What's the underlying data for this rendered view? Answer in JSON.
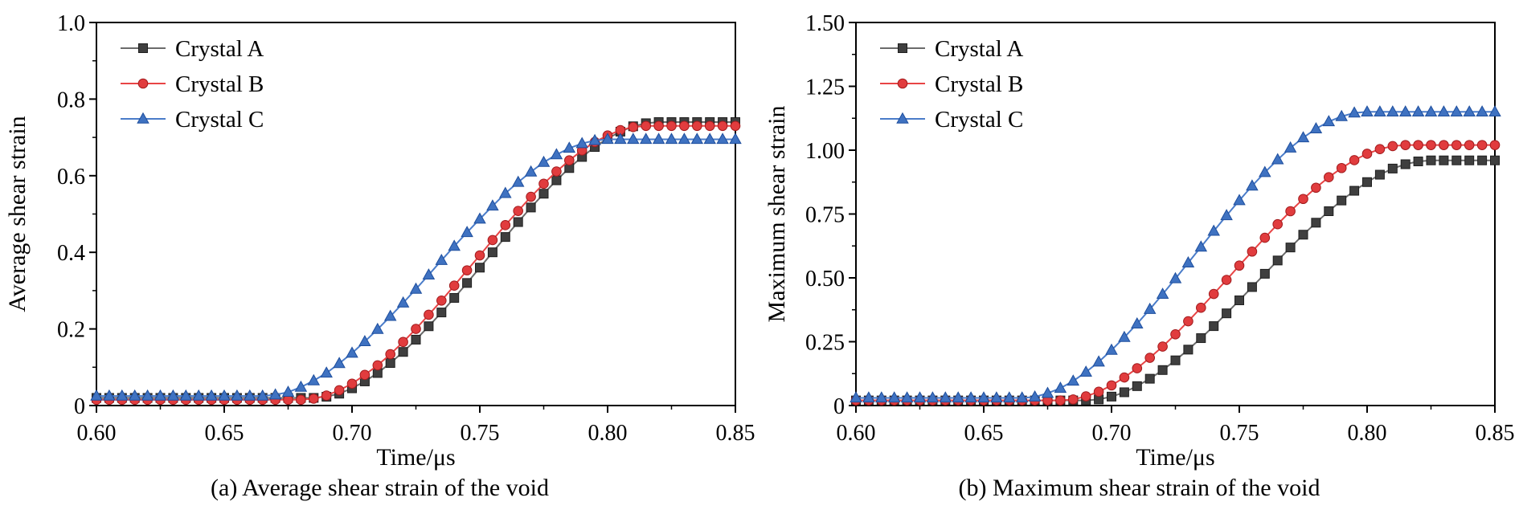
{
  "figure": {
    "background": "#ffffff",
    "panel_captions": [
      "(a) Average shear strain of the void",
      "(b) Maximum shear strain of the void"
    ]
  },
  "chart_data": [
    {
      "type": "line",
      "title": "",
      "xlabel": "Time/μs",
      "ylabel": "Average shear strain",
      "xlim": [
        0.6,
        0.85
      ],
      "ylim": [
        0,
        1.0
      ],
      "xticks": [
        0.6,
        0.65,
        0.7,
        0.75,
        0.8,
        0.85
      ],
      "xtick_labels": [
        "0.60",
        "0.65",
        "0.70",
        "0.75",
        "0.80",
        "0.85"
      ],
      "yticks": [
        0,
        0.2,
        0.4,
        0.6,
        0.8,
        1.0
      ],
      "ytick_labels": [
        "0",
        "0.2",
        "0.4",
        "0.6",
        "0.8",
        "1.0"
      ],
      "grid": false,
      "legend_position": "top-left",
      "caption": "(a) Average shear strain of the void",
      "x": [
        0.6,
        0.605,
        0.61,
        0.615,
        0.62,
        0.625,
        0.63,
        0.635,
        0.64,
        0.645,
        0.65,
        0.655,
        0.66,
        0.665,
        0.67,
        0.675,
        0.68,
        0.685,
        0.69,
        0.695,
        0.7,
        0.705,
        0.71,
        0.715,
        0.72,
        0.725,
        0.73,
        0.735,
        0.74,
        0.745,
        0.75,
        0.755,
        0.76,
        0.765,
        0.77,
        0.775,
        0.78,
        0.785,
        0.79,
        0.795,
        0.8,
        0.805,
        0.81,
        0.815,
        0.82,
        0.825,
        0.83,
        0.835,
        0.84,
        0.845,
        0.85
      ],
      "series": [
        {
          "name": "Crystal A",
          "marker": "square",
          "color": "#6b6b6b",
          "marker_fill": "#3f3f3f",
          "marker_edge": "#1f1f1f",
          "values": [
            0.02,
            0.02,
            0.02,
            0.02,
            0.02,
            0.02,
            0.02,
            0.02,
            0.02,
            0.02,
            0.02,
            0.02,
            0.02,
            0.02,
            0.02,
            0.02,
            0.02,
            0.02,
            0.023,
            0.031,
            0.045,
            0.063,
            0.085,
            0.111,
            0.14,
            0.172,
            0.207,
            0.243,
            0.281,
            0.32,
            0.36,
            0.4,
            0.44,
            0.479,
            0.517,
            0.553,
            0.588,
            0.62,
            0.649,
            0.675,
            0.697,
            0.715,
            0.729,
            0.737,
            0.74,
            0.74,
            0.74,
            0.74,
            0.74,
            0.74,
            0.74
          ]
        },
        {
          "name": "Crystal B",
          "marker": "circle",
          "color": "#e84445",
          "marker_fill": "#e13c3e",
          "marker_edge": "#a21c1e",
          "values": [
            0.015,
            0.015,
            0.015,
            0.015,
            0.015,
            0.015,
            0.015,
            0.015,
            0.015,
            0.015,
            0.015,
            0.015,
            0.015,
            0.015,
            0.015,
            0.015,
            0.015,
            0.018,
            0.026,
            0.04,
            0.057,
            0.08,
            0.105,
            0.134,
            0.166,
            0.2,
            0.237,
            0.274,
            0.313,
            0.353,
            0.392,
            0.432,
            0.471,
            0.508,
            0.545,
            0.579,
            0.611,
            0.64,
            0.666,
            0.688,
            0.705,
            0.719,
            0.727,
            0.73,
            0.73,
            0.73,
            0.73,
            0.73,
            0.73,
            0.73,
            0.73
          ]
        },
        {
          "name": "Crystal C",
          "marker": "triangle",
          "color": "#4a7cc9",
          "marker_fill": "#3f72c1",
          "marker_edge": "#1e4e9d",
          "values": [
            0.025,
            0.025,
            0.025,
            0.025,
            0.025,
            0.025,
            0.025,
            0.025,
            0.025,
            0.025,
            0.025,
            0.025,
            0.025,
            0.025,
            0.028,
            0.035,
            0.048,
            0.065,
            0.085,
            0.11,
            0.137,
            0.167,
            0.199,
            0.233,
            0.268,
            0.304,
            0.341,
            0.379,
            0.416,
            0.452,
            0.487,
            0.521,
            0.554,
            0.583,
            0.61,
            0.635,
            0.655,
            0.672,
            0.684,
            0.692,
            0.695,
            0.695,
            0.695,
            0.695,
            0.695,
            0.695,
            0.695,
            0.695,
            0.695,
            0.695,
            0.695
          ]
        }
      ]
    },
    {
      "type": "line",
      "title": "",
      "xlabel": "Time/μs",
      "ylabel": "Maximum shear strain",
      "xlim": [
        0.6,
        0.85
      ],
      "ylim": [
        0,
        1.5
      ],
      "xticks": [
        0.6,
        0.65,
        0.7,
        0.75,
        0.8,
        0.85
      ],
      "xtick_labels": [
        "0.60",
        "0.65",
        "0.70",
        "0.75",
        "0.80",
        "0.85"
      ],
      "yticks": [
        0,
        0.25,
        0.5,
        0.75,
        1.0,
        1.25,
        1.5
      ],
      "ytick_labels": [
        "0",
        "0.25",
        "0.50",
        "0.75",
        "1.00",
        "1.25",
        "1.50"
      ],
      "grid": false,
      "legend_position": "top-left",
      "caption": "(b) Maximum shear strain of the void",
      "x": [
        0.6,
        0.605,
        0.61,
        0.615,
        0.62,
        0.625,
        0.63,
        0.635,
        0.64,
        0.645,
        0.65,
        0.655,
        0.66,
        0.665,
        0.67,
        0.675,
        0.68,
        0.685,
        0.69,
        0.695,
        0.7,
        0.705,
        0.71,
        0.715,
        0.72,
        0.725,
        0.73,
        0.735,
        0.74,
        0.745,
        0.75,
        0.755,
        0.76,
        0.765,
        0.77,
        0.775,
        0.78,
        0.785,
        0.79,
        0.795,
        0.8,
        0.805,
        0.81,
        0.815,
        0.82,
        0.825,
        0.83,
        0.835,
        0.84,
        0.845,
        0.85
      ],
      "series": [
        {
          "name": "Crystal A",
          "marker": "square",
          "color": "#6b6b6b",
          "marker_fill": "#3f3f3f",
          "marker_edge": "#1f1f1f",
          "values": [
            0.02,
            0.02,
            0.02,
            0.02,
            0.02,
            0.02,
            0.02,
            0.02,
            0.02,
            0.02,
            0.02,
            0.02,
            0.02,
            0.02,
            0.02,
            0.02,
            0.02,
            0.02,
            0.02,
            0.024,
            0.035,
            0.052,
            0.076,
            0.105,
            0.139,
            0.177,
            0.219,
            0.264,
            0.311,
            0.361,
            0.412,
            0.464,
            0.516,
            0.568,
            0.619,
            0.669,
            0.716,
            0.761,
            0.803,
            0.841,
            0.875,
            0.904,
            0.928,
            0.945,
            0.956,
            0.96,
            0.96,
            0.96,
            0.96,
            0.96,
            0.96
          ]
        },
        {
          "name": "Crystal B",
          "marker": "circle",
          "color": "#e84445",
          "marker_fill": "#e13c3e",
          "marker_edge": "#a21c1e",
          "values": [
            0.02,
            0.02,
            0.02,
            0.02,
            0.02,
            0.02,
            0.02,
            0.02,
            0.02,
            0.02,
            0.02,
            0.02,
            0.02,
            0.02,
            0.02,
            0.02,
            0.02,
            0.024,
            0.036,
            0.054,
            0.079,
            0.11,
            0.146,
            0.187,
            0.231,
            0.279,
            0.33,
            0.383,
            0.437,
            0.492,
            0.548,
            0.603,
            0.657,
            0.71,
            0.761,
            0.809,
            0.853,
            0.894,
            0.93,
            0.961,
            0.986,
            1.004,
            1.016,
            1.02,
            1.02,
            1.02,
            1.02,
            1.02,
            1.02,
            1.02,
            1.02
          ]
        },
        {
          "name": "Crystal C",
          "marker": "triangle",
          "color": "#4a7cc9",
          "marker_fill": "#3f72c1",
          "marker_edge": "#1e4e9d",
          "values": [
            0.03,
            0.03,
            0.03,
            0.03,
            0.03,
            0.03,
            0.03,
            0.03,
            0.03,
            0.03,
            0.03,
            0.03,
            0.03,
            0.03,
            0.034,
            0.048,
            0.068,
            0.096,
            0.131,
            0.171,
            0.217,
            0.267,
            0.32,
            0.377,
            0.436,
            0.497,
            0.559,
            0.621,
            0.683,
            0.744,
            0.803,
            0.86,
            0.913,
            0.963,
            1.009,
            1.049,
            1.084,
            1.112,
            1.132,
            1.146,
            1.15,
            1.15,
            1.15,
            1.15,
            1.15,
            1.15,
            1.15,
            1.15,
            1.15,
            1.15,
            1.15
          ]
        }
      ]
    }
  ]
}
